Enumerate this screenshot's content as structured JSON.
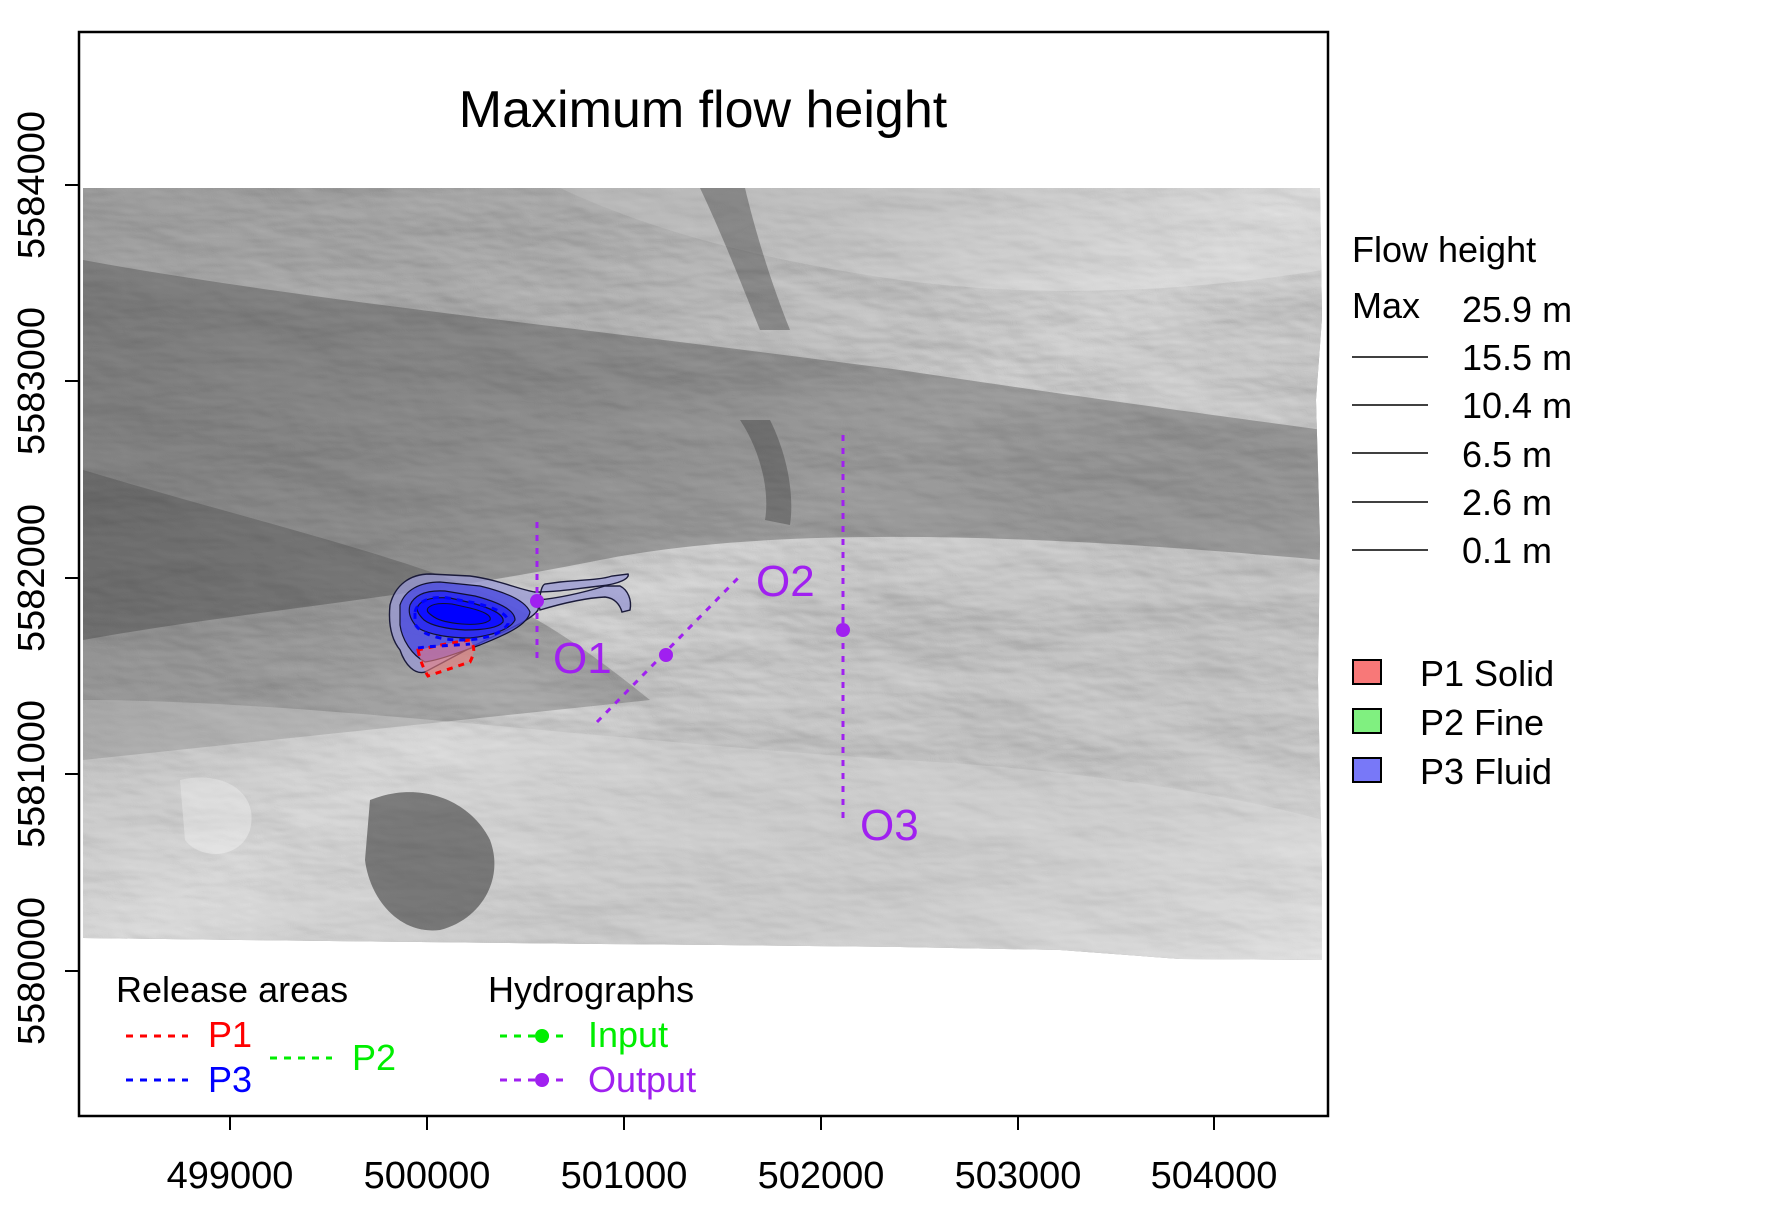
{
  "title": "Maximum flow height",
  "axes": {
    "x_ticks": [
      "499000",
      "500000",
      "501000",
      "502000",
      "503000",
      "504000"
    ],
    "y_ticks": [
      "5580000",
      "5581000",
      "5582000",
      "5583000",
      "5584000"
    ]
  },
  "legend_flow": {
    "title": "Flow height",
    "max_label": "Max",
    "levels": [
      "25.9 m",
      "15.5 m",
      "10.4 m",
      "6.5 m",
      "2.6 m",
      "0.1 m"
    ]
  },
  "legend_phases": {
    "items": [
      {
        "label": "P1 Solid",
        "color": "#f87878"
      },
      {
        "label": "P2 Fine",
        "color": "#80f080"
      },
      {
        "label": "P3 Fluid",
        "color": "#7878f8"
      }
    ]
  },
  "legend_release": {
    "title": "Release areas",
    "p1": "P1",
    "p2": "P2",
    "p3": "P3",
    "colors": {
      "p1": "#ff0000",
      "p2": "#00ee00",
      "p3": "#0000ff"
    }
  },
  "legend_hydro": {
    "title": "Hydrographs",
    "input": "Input",
    "output": "Output",
    "colors": {
      "input": "#00ee00",
      "output": "#a020f0"
    }
  },
  "hydrographs": [
    {
      "label": "O1"
    },
    {
      "label": "O2"
    },
    {
      "label": "O3"
    }
  ]
}
